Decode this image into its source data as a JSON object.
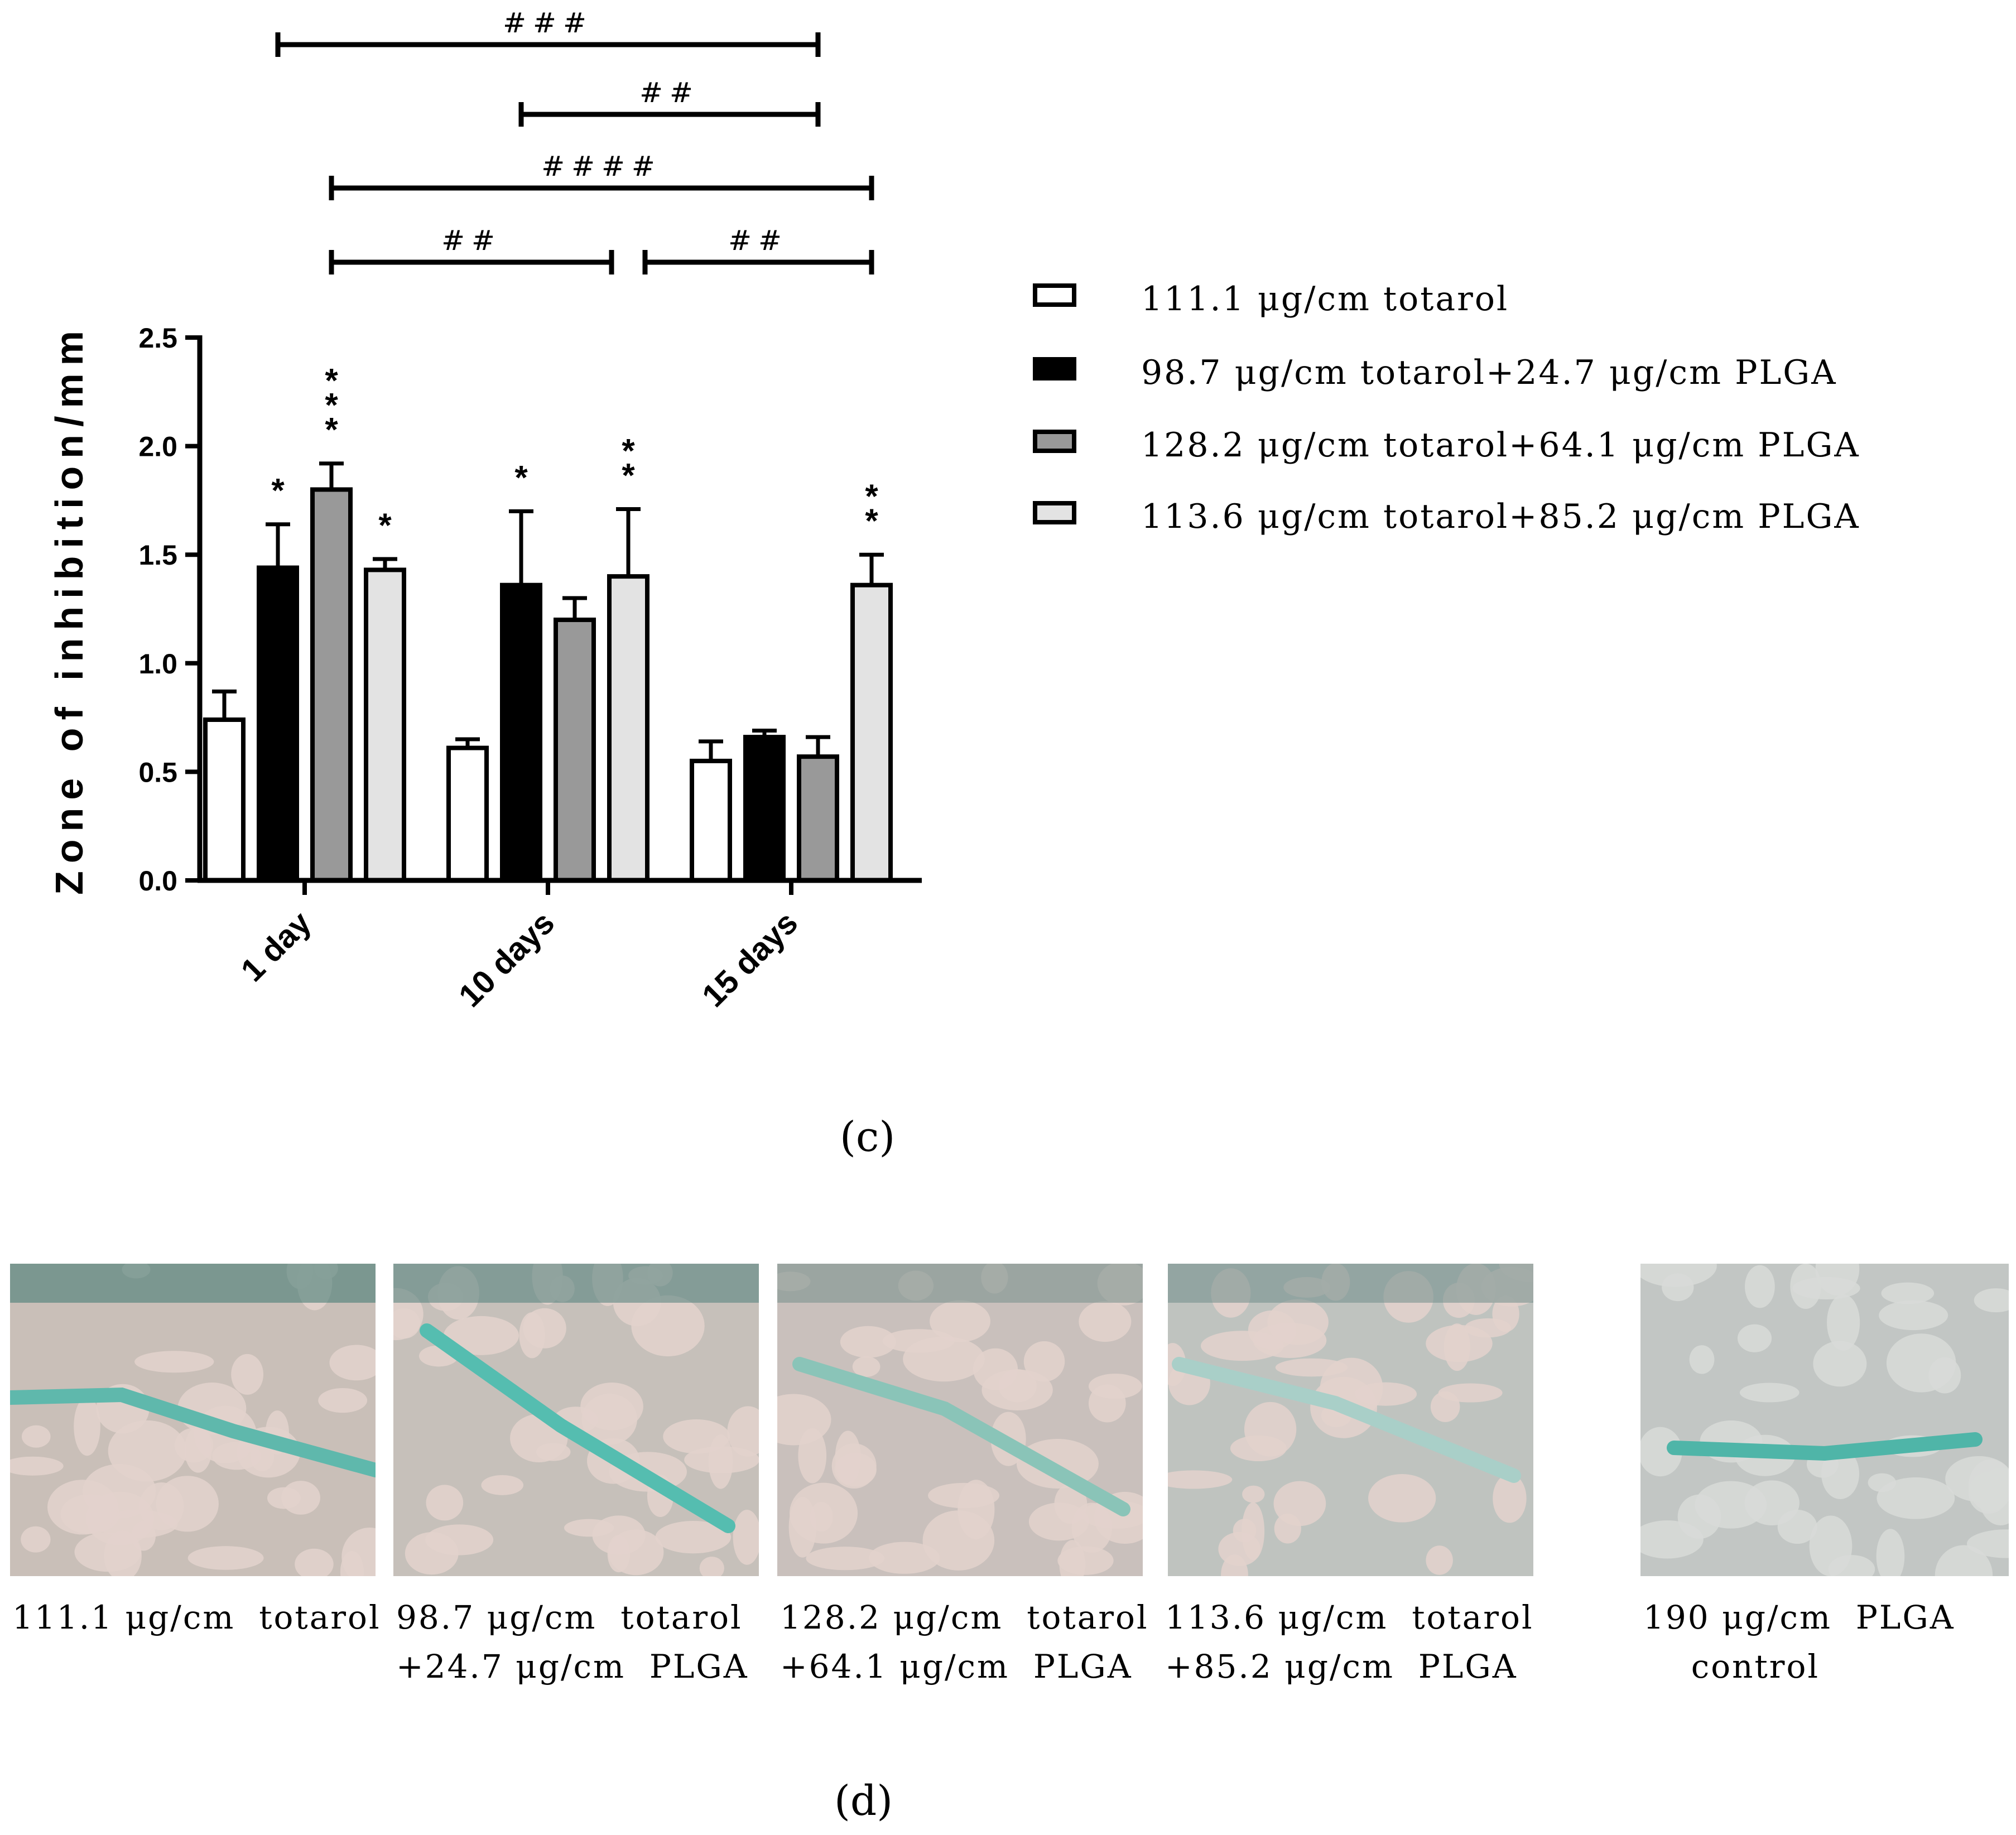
{
  "chart_data": {
    "type": "bar",
    "ylabel": "Zone of inhibition/mm",
    "xlabel": "",
    "ylim": [
      0,
      2.5
    ],
    "yticks": [
      "0.0",
      "0.5",
      "1.0",
      "1.5",
      "2.0",
      "2.5"
    ],
    "categories": [
      "1 day",
      "10 days",
      "15 days"
    ],
    "legend_position": "right",
    "series": [
      {
        "name": "111.1 μg/cm  totarol",
        "values": [
          0.74,
          0.61,
          0.55
        ],
        "errors": [
          0.13,
          0.04,
          0.09
        ],
        "color": "#ffffff",
        "stars": [
          "",
          "",
          ""
        ]
      },
      {
        "name": "98.7 μg/cm  totarol+24.7 μg/cm  PLGA",
        "values": [
          1.44,
          1.36,
          0.66
        ],
        "errors": [
          0.2,
          0.34,
          0.03
        ],
        "color": "#000000",
        "stars": [
          "*",
          "*",
          ""
        ]
      },
      {
        "name": "128.2 μg/cm  totarol+64.1 μg/cm  PLGA",
        "values": [
          1.8,
          1.2,
          0.57
        ],
        "errors": [
          0.12,
          0.1,
          0.09
        ],
        "color": "#999999",
        "stars": [
          "***",
          "",
          ""
        ]
      },
      {
        "name": "113.6 μg/cm  totarol+85.2 μg/cm  PLGA",
        "values": [
          1.43,
          1.4,
          1.36
        ],
        "errors": [
          0.05,
          0.31,
          0.14
        ],
        "color": "#e3e3e3",
        "stars": [
          "*",
          "**",
          "**"
        ]
      }
    ],
    "brackets": [
      {
        "label": "###",
        "from": [
          0,
          1
        ],
        "to": [
          2,
          2
        ]
      },
      {
        "label": "##",
        "from": [
          1,
          1
        ],
        "to": [
          2,
          2
        ]
      },
      {
        "label": "####",
        "from": [
          0,
          2
        ],
        "to": [
          2,
          3
        ]
      },
      {
        "label": "##",
        "from": [
          0,
          2
        ],
        "to": [
          1,
          3
        ]
      },
      {
        "label": "##",
        "from": [
          1,
          3
        ],
        "to": [
          2,
          3
        ]
      }
    ]
  },
  "panel_c_label": "(c)",
  "panel_d_label": "(d)",
  "photos": [
    {
      "caption": "111.1 μg/cm  totarol",
      "rod_color": "#5fb8ac"
    },
    {
      "caption": "98.7 μg/cm  totarol\n+24.7 μg/cm  PLGA",
      "rod_color": "#55bdb0"
    },
    {
      "caption": "128.2 μg/cm  totarol\n+64.1 μg/cm  PLGA",
      "rod_color": "#8ac4b8"
    },
    {
      "caption": "113.6 μg/cm  totarol\n+85.2 μg/cm  PLGA",
      "rod_color": "#a9cfc8"
    },
    {
      "caption": "190 μg/cm  PLGA\n    control",
      "rod_color": "#4fb5a8"
    }
  ]
}
